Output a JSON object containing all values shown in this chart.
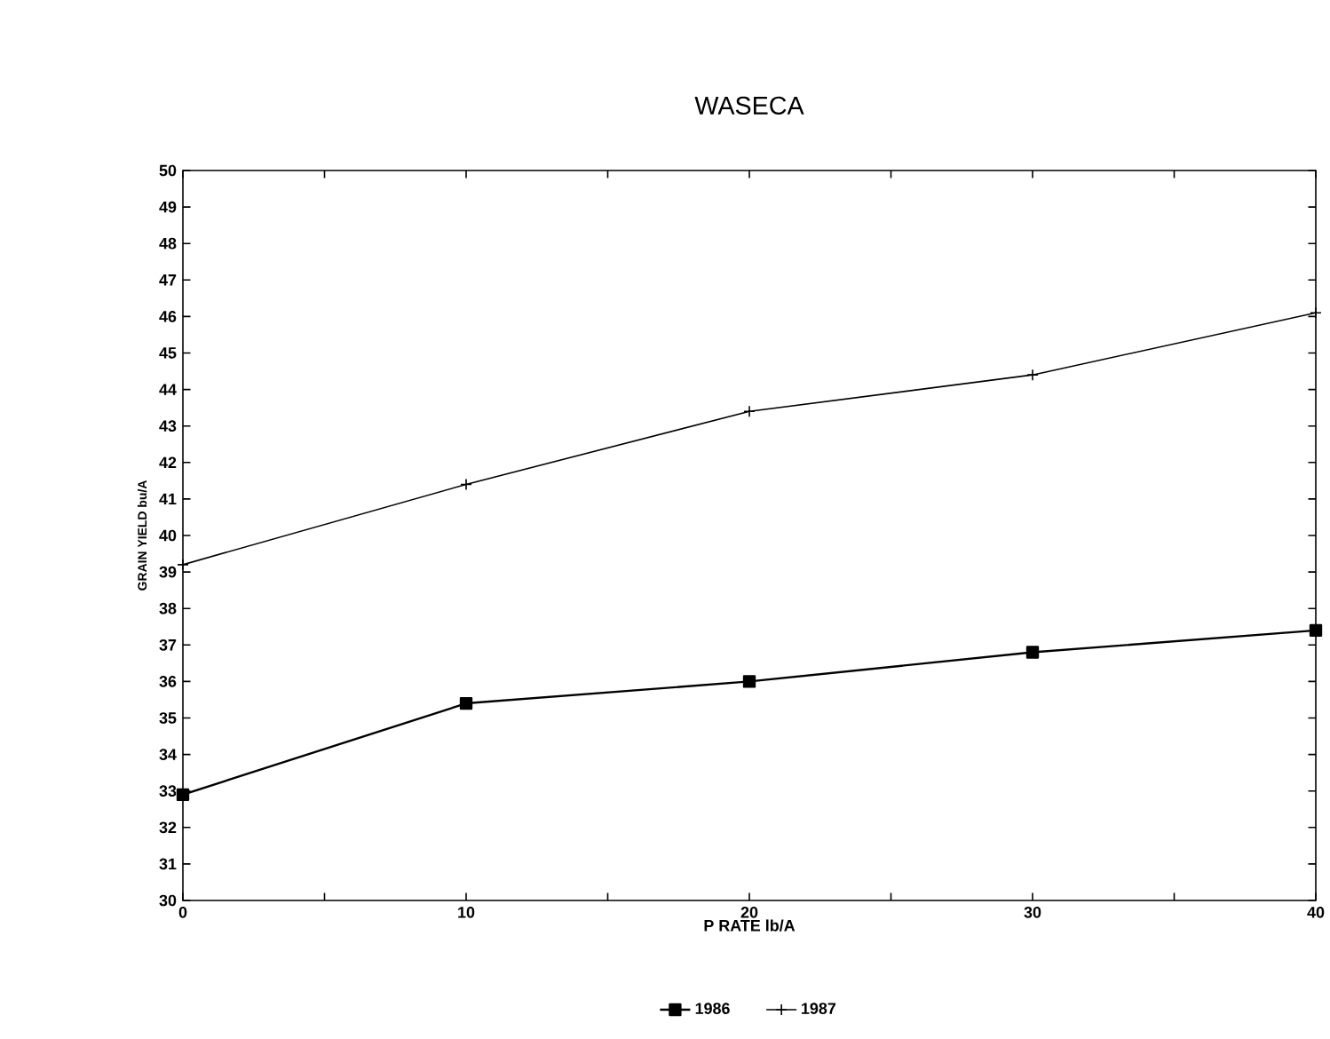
{
  "chart_data": {
    "type": "line",
    "title": "WASECA",
    "xlabel": "P RATE lb/A",
    "ylabel": "GRAIN YIELD bu/A",
    "x": [
      0,
      10,
      20,
      30,
      40
    ],
    "series": [
      {
        "name": "1986",
        "color": "#000000",
        "marker": "square",
        "values": [
          32.9,
          35.4,
          36.0,
          36.8,
          37.4
        ]
      },
      {
        "name": "1987",
        "color": "#000000",
        "marker": "cross",
        "values": [
          39.2,
          41.4,
          43.4,
          44.4,
          46.1
        ]
      }
    ],
    "xlim": [
      0,
      40
    ],
    "ylim": [
      30,
      50
    ],
    "xticks": [
      0,
      {
        "value": 5,
        "label": null
      },
      10,
      {
        "value": 15,
        "label": null
      },
      20,
      {
        "value": 25,
        "label": null
      },
      30,
      {
        "value": 35,
        "label": null
      },
      40
    ],
    "yticks": [
      30,
      31,
      32,
      33,
      34,
      35,
      36,
      37,
      38,
      39,
      40,
      41,
      42,
      43,
      44,
      45,
      46,
      47,
      48,
      49,
      50
    ],
    "grid": false,
    "legend": "bottom",
    "line_style": "solid"
  }
}
